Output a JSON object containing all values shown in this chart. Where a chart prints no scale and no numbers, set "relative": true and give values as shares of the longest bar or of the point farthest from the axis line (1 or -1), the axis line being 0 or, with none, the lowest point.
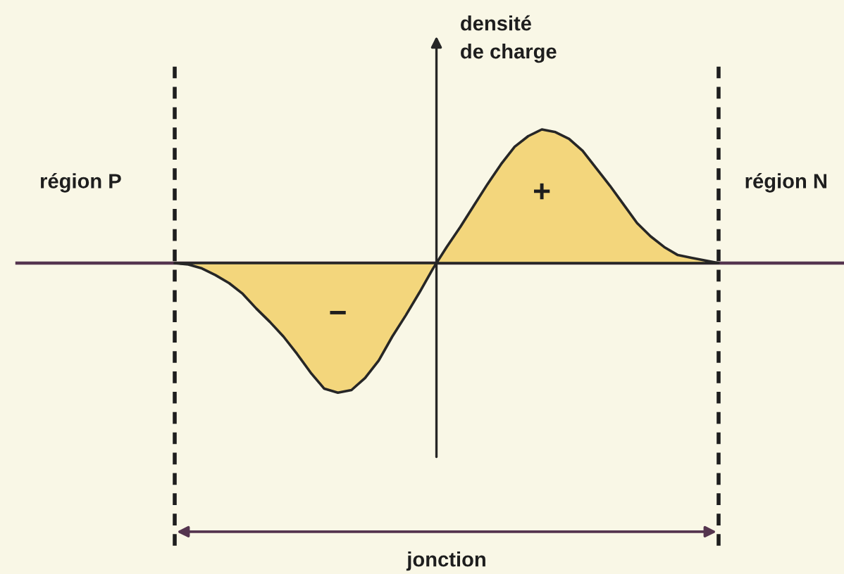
{
  "chart_data": {
    "type": "area",
    "relative": true,
    "ylabel": "densité\nde charge",
    "categories": [
      null,
      null,
      null,
      null,
      null,
      null,
      null,
      null,
      null,
      null,
      null,
      null,
      null,
      null,
      null,
      null,
      null,
      null,
      null,
      null,
      null,
      null,
      null,
      null,
      null,
      null,
      null,
      null,
      null,
      null,
      null,
      null,
      null,
      null,
      null,
      null,
      null,
      null,
      null,
      null,
      null
    ],
    "values": [
      0,
      -0.01,
      -0.04,
      -0.09,
      -0.15,
      -0.23,
      -0.34,
      -0.44,
      -0.55,
      -0.68,
      -0.82,
      -0.94,
      -0.97,
      -0.95,
      -0.86,
      -0.73,
      -0.55,
      -0.39,
      -0.22,
      -0.04,
      0.12,
      0.27,
      0.43,
      0.59,
      0.74,
      0.87,
      0.95,
      1,
      0.98,
      0.93,
      0.84,
      0.71,
      0.58,
      0.44,
      0.3,
      0.2,
      0.12,
      0.06,
      0.04,
      0.02,
      0
    ],
    "color": "#f3d67c",
    "annotations": [
      "région P",
      "région N",
      "+",
      "−",
      "jonction"
    ]
  }
}
